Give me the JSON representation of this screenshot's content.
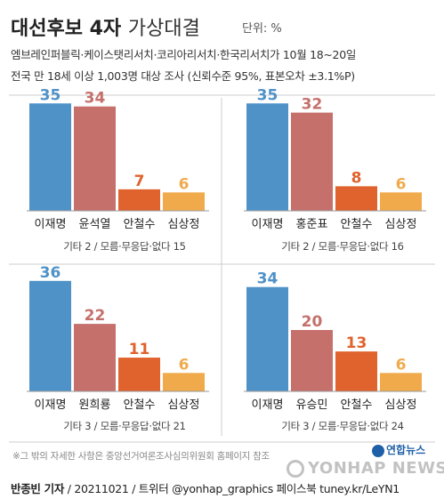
{
  "header": {
    "title_bold": "대선후보 4자",
    "title_light": "가상대결",
    "unit": "단위: %",
    "subtitle_line1": "엠브레인퍼블릭·케이스탯리서치·코리아리서치·한국리서치가 10월 18~20일",
    "subtitle_line2": "전국 만 18세 이상 1,003명 대상 조사 (신뢰수준 95%, 표본오차 ±3.1%P)"
  },
  "colors": {
    "blue": "#4f92c8",
    "pink": "#c5706b",
    "orange": "#e0622d",
    "yellow": "#f0aa4c",
    "divider": "#cccccc"
  },
  "chart_data": [
    {
      "type": "bar",
      "categories": [
        "이재명",
        "윤석열",
        "안철수",
        "심상정"
      ],
      "values": [
        35,
        34,
        7,
        6
      ],
      "note": "기타 2 / 모름·무응답·없다 15"
    },
    {
      "type": "bar",
      "categories": [
        "이재명",
        "홍준표",
        "안철수",
        "심상정"
      ],
      "values": [
        35,
        32,
        8,
        6
      ],
      "note": "기타 2 / 모름·무응답·없다 16"
    },
    {
      "type": "bar",
      "categories": [
        "이재명",
        "원희룡",
        "안철수",
        "심상정"
      ],
      "values": [
        36,
        22,
        11,
        6
      ],
      "note": "기타 3 / 모름·무응답·없다 21"
    },
    {
      "type": "bar",
      "categories": [
        "이재명",
        "유승민",
        "안철수",
        "심상정"
      ],
      "values": [
        34,
        20,
        13,
        6
      ],
      "note": "기타 3 / 모름·무응답·없다 24"
    }
  ],
  "footnote": "※그 밖의 자세한 사항은 중앙선거여론조사심의위원회 홈페이지 참조",
  "credit": {
    "author": "반종빈 기자",
    "rest": " / 20211021 / 트위터 @yonhap_graphics  페이스북 tuney.kr/LeYN1"
  },
  "logo": "연합뉴스",
  "watermark": "YONHAP NEWS"
}
